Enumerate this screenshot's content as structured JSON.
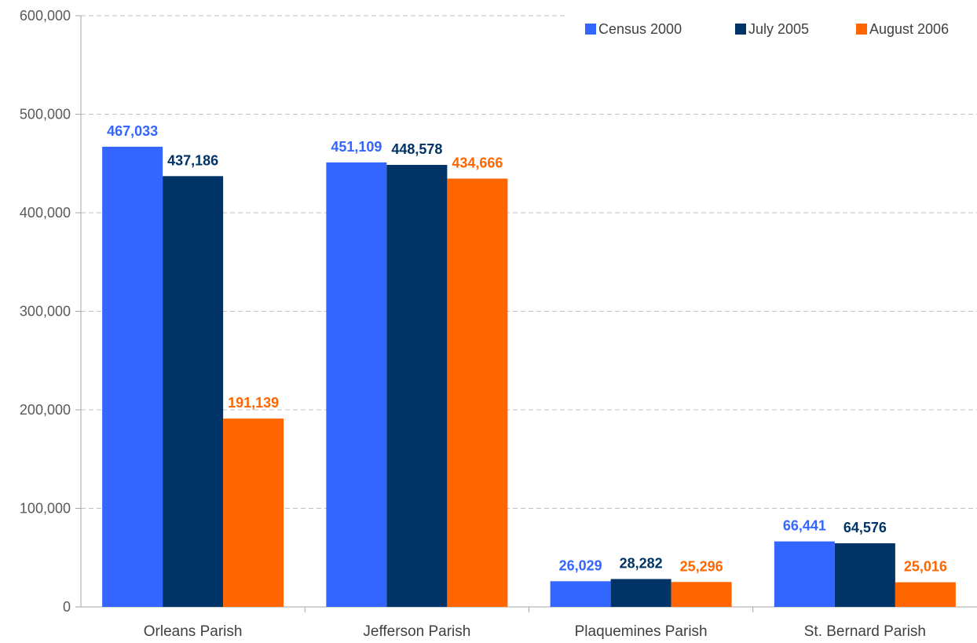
{
  "chart_data": {
    "type": "bar",
    "categories": [
      "Orleans Parish",
      "Jefferson Parish",
      "Plaquemines Parish",
      "St. Bernard Parish"
    ],
    "series": [
      {
        "name": "Census 2000",
        "color": "#3366ff",
        "values": [
          467033,
          451109,
          26029,
          66441
        ],
        "labels": [
          "467,033",
          "451,109",
          "26,029",
          "66,441"
        ]
      },
      {
        "name": "July 2005",
        "color": "#003366",
        "values": [
          437186,
          448578,
          28282,
          64576
        ],
        "labels": [
          "437,186",
          "448,578",
          "28,282",
          "64,576"
        ]
      },
      {
        "name": "August 2006",
        "color": "#ff6600",
        "values": [
          191139,
          434666,
          25296,
          25016
        ],
        "labels": [
          "191,139",
          "434,666",
          "25,296",
          "25,016"
        ]
      }
    ],
    "title": "",
    "xlabel": "",
    "ylabel": "",
    "ylim": [
      0,
      600000
    ],
    "yticks": [
      0,
      100000,
      200000,
      300000,
      400000,
      500000,
      600000
    ],
    "ytick_labels": [
      "0",
      "100,000",
      "200,000",
      "300,000",
      "400,000",
      "500,000",
      "600,000"
    ],
    "grid": true,
    "legend_position": "top-right"
  }
}
